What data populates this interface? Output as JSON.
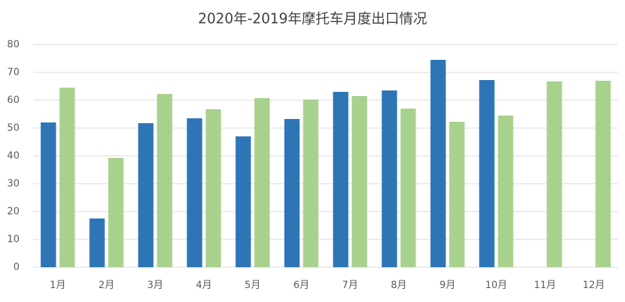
{
  "chart_data": {
    "type": "bar",
    "title": "2020年-2019年摩托车月度出口情况",
    "categories": [
      "1月",
      "2月",
      "3月",
      "4月",
      "5月",
      "6月",
      "7月",
      "8月",
      "9月",
      "10月",
      "11月",
      "12月"
    ],
    "series": [
      {
        "color": "#2e75b6",
        "values": [
          52,
          17.5,
          51.75,
          53.5,
          47,
          53.25,
          63,
          63.5,
          74.5,
          67.25,
          null,
          null
        ]
      },
      {
        "color": "#a9d18e",
        "values": [
          64.5,
          39.25,
          62.25,
          56.75,
          60.75,
          60.25,
          61.5,
          57,
          52.25,
          54.5,
          66.75,
          67
        ]
      }
    ],
    "ylim": [
      0,
      80
    ],
    "yticks": [
      0,
      10,
      20,
      30,
      40,
      50,
      60,
      70,
      80
    ],
    "grid": true
  }
}
